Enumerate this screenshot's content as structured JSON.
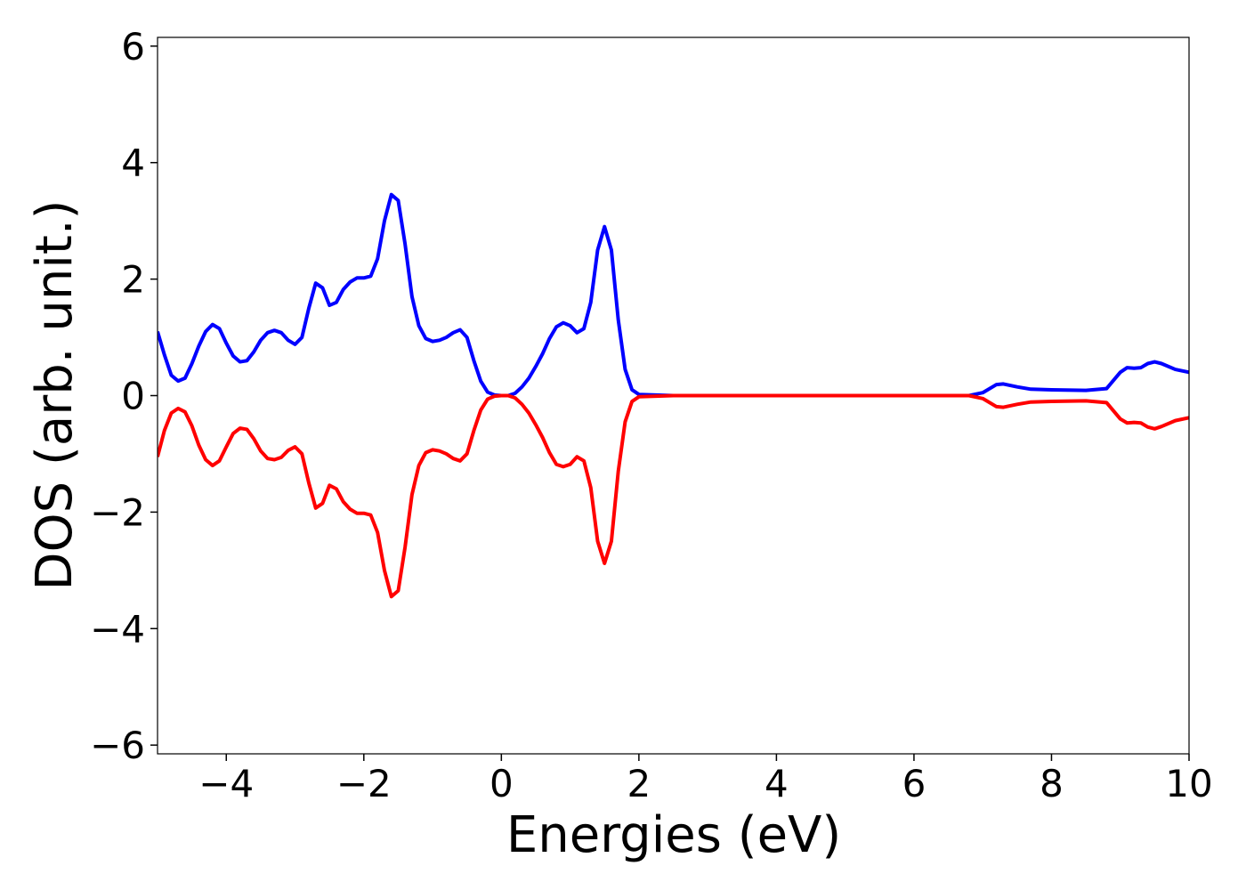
{
  "chart_data": {
    "type": "line",
    "xlabel": "Energies (eV)",
    "ylabel": "DOS (arb. unit.)",
    "xlim": [
      -5,
      10
    ],
    "ylim": [
      -6.15,
      6.15
    ],
    "xticks": [
      {
        "value": -4,
        "label": "−4"
      },
      {
        "value": -2,
        "label": "−2"
      },
      0,
      2,
      4,
      6,
      8,
      10
    ],
    "yticks": [
      {
        "value": -6,
        "label": "−6"
      },
      {
        "value": -4,
        "label": "−4"
      },
      {
        "value": -2,
        "label": "−2"
      },
      0,
      2,
      4,
      6
    ],
    "grid": false,
    "x": [
      -5,
      -4.9,
      -4.8,
      -4.7,
      -4.6,
      -4.5,
      -4.4,
      -4.3,
      -4.2,
      -4.1,
      -4.0,
      -3.9,
      -3.8,
      -3.7,
      -3.6,
      -3.5,
      -3.4,
      -3.3,
      -3.2,
      -3.1,
      -3.0,
      -2.9,
      -2.8,
      -2.7,
      -2.6,
      -2.5,
      -2.4,
      -2.3,
      -2.2,
      -2.1,
      -2.0,
      -1.9,
      -1.8,
      -1.7,
      -1.6,
      -1.5,
      -1.4,
      -1.3,
      -1.2,
      -1.1,
      -1.0,
      -0.9,
      -0.8,
      -0.7,
      -0.6,
      -0.5,
      -0.4,
      -0.3,
      -0.2,
      -0.1,
      0,
      0.1,
      0.2,
      0.3,
      0.4,
      0.5,
      0.6,
      0.7,
      0.8,
      0.9,
      1.0,
      1.1,
      1.2,
      1.3,
      1.4,
      1.5,
      1.6,
      1.7,
      1.8,
      1.9,
      2.0,
      2.5,
      3,
      3.5,
      4,
      4.5,
      5,
      5.5,
      6,
      6.5,
      6.8,
      7.0,
      7.2,
      7.3,
      7.5,
      7.7,
      8.0,
      8.5,
      8.8,
      9.0,
      9.1,
      9.2,
      9.3,
      9.4,
      9.5,
      9.6,
      9.8,
      10
    ],
    "series": [
      {
        "color": "#0000ff",
        "values": [
          1.1,
          0.7,
          0.35,
          0.25,
          0.3,
          0.55,
          0.85,
          1.1,
          1.22,
          1.15,
          0.9,
          0.68,
          0.58,
          0.6,
          0.75,
          0.95,
          1.08,
          1.12,
          1.08,
          0.95,
          0.88,
          1.0,
          1.5,
          1.93,
          1.85,
          1.55,
          1.6,
          1.82,
          1.95,
          2.02,
          2.02,
          2.05,
          2.35,
          3.0,
          3.45,
          3.35,
          2.6,
          1.7,
          1.2,
          0.98,
          0.93,
          0.95,
          1.0,
          1.08,
          1.13,
          1.0,
          0.6,
          0.25,
          0.06,
          0.01,
          0,
          0,
          0.04,
          0.15,
          0.3,
          0.5,
          0.72,
          0.98,
          1.18,
          1.25,
          1.2,
          1.08,
          1.15,
          1.6,
          2.5,
          2.9,
          2.5,
          1.3,
          0.45,
          0.1,
          0.02,
          0,
          0,
          0,
          0,
          0,
          0,
          0,
          0,
          0,
          0,
          0.05,
          0.19,
          0.2,
          0.15,
          0.11,
          0.1,
          0.09,
          0.12,
          0.4,
          0.48,
          0.47,
          0.48,
          0.55,
          0.58,
          0.55,
          0.45,
          0.4
        ]
      },
      {
        "color": "#ff0000",
        "values": [
          -1.05,
          -0.6,
          -0.3,
          -0.22,
          -0.28,
          -0.52,
          -0.85,
          -1.1,
          -1.2,
          -1.12,
          -0.88,
          -0.65,
          -0.56,
          -0.58,
          -0.74,
          -0.95,
          -1.08,
          -1.1,
          -1.06,
          -0.94,
          -0.88,
          -1.0,
          -1.5,
          -1.93,
          -1.85,
          -1.54,
          -1.6,
          -1.82,
          -1.95,
          -2.02,
          -2.02,
          -2.05,
          -2.35,
          -3.0,
          -3.45,
          -3.35,
          -2.6,
          -1.7,
          -1.2,
          -0.98,
          -0.93,
          -0.95,
          -1.0,
          -1.08,
          -1.12,
          -1.0,
          -0.6,
          -0.25,
          -0.06,
          -0.01,
          0,
          0,
          -0.04,
          -0.15,
          -0.3,
          -0.5,
          -0.72,
          -0.98,
          -1.18,
          -1.22,
          -1.18,
          -1.05,
          -1.12,
          -1.58,
          -2.5,
          -2.88,
          -2.5,
          -1.3,
          -0.45,
          -0.1,
          -0.02,
          0,
          0,
          0,
          0,
          0,
          0,
          0,
          0,
          0,
          0,
          -0.05,
          -0.19,
          -0.2,
          -0.15,
          -0.11,
          -0.1,
          -0.09,
          -0.12,
          -0.4,
          -0.47,
          -0.46,
          -0.47,
          -0.54,
          -0.57,
          -0.53,
          -0.43,
          -0.38
        ]
      }
    ]
  }
}
